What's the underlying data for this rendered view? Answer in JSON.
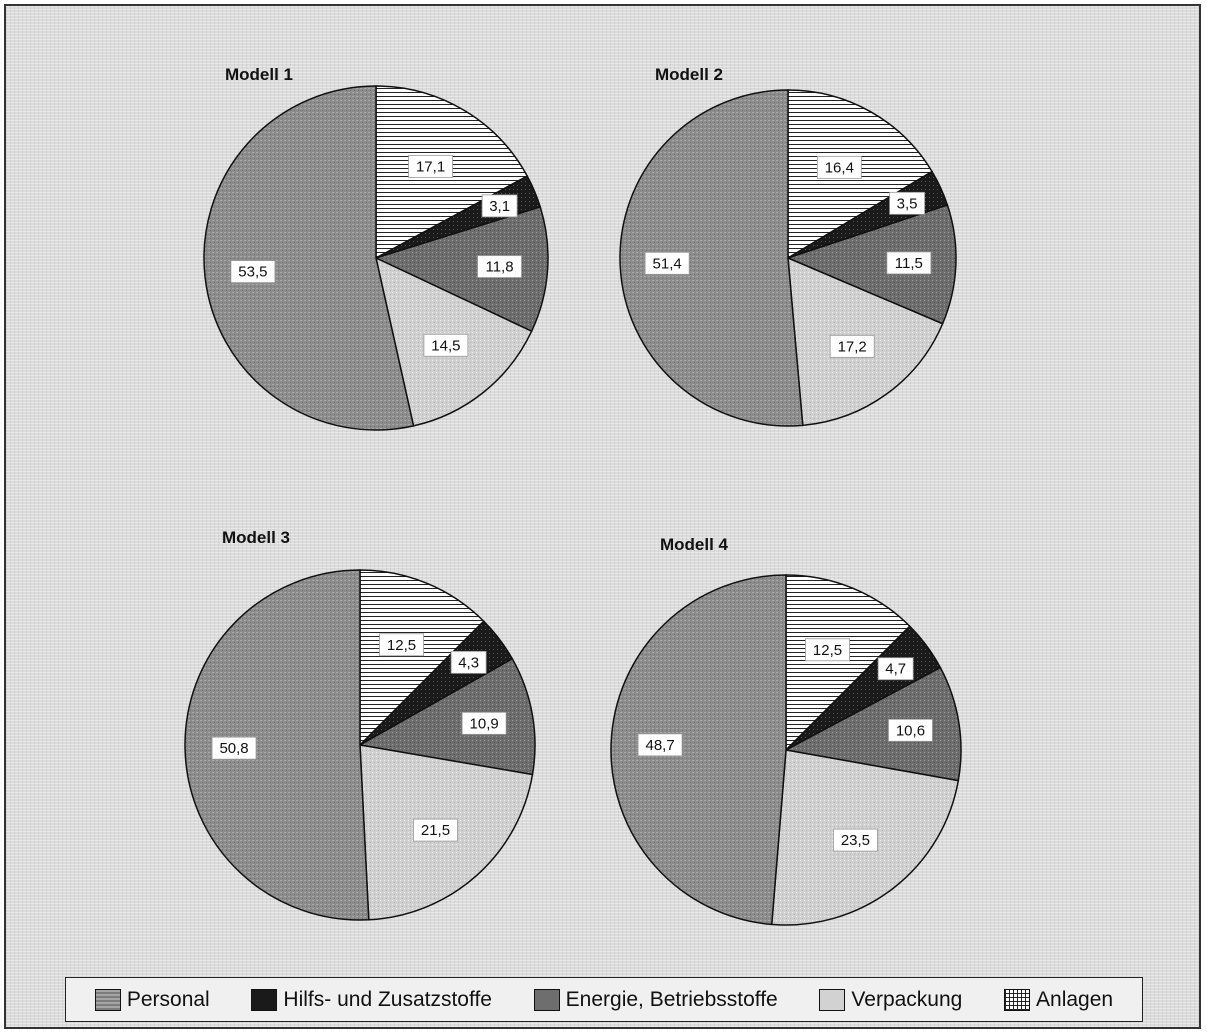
{
  "chart_data": [
    {
      "type": "pie",
      "title": "Modell 1",
      "labels": [
        "Anlagen",
        "Hilfs- und Zusatzstoffe",
        "Energie, Betriebsstoffe",
        "Verpackung",
        "Personal"
      ],
      "values": [
        17.1,
        3.1,
        11.8,
        14.5,
        53.5
      ],
      "value_labels": [
        "17,1",
        "3,1",
        "11,8",
        "14,5",
        "53,5"
      ]
    },
    {
      "type": "pie",
      "title": "Modell 2",
      "labels": [
        "Anlagen",
        "Hilfs- und Zusatzstoffe",
        "Energie, Betriebsstoffe",
        "Verpackung",
        "Personal"
      ],
      "values": [
        16.4,
        3.5,
        11.5,
        17.2,
        51.4
      ],
      "value_labels": [
        "16,4",
        "3,5",
        "11,5",
        "17,2",
        "51,4"
      ]
    },
    {
      "type": "pie",
      "title": "Modell 3",
      "labels": [
        "Anlagen",
        "Hilfs- und Zusatzstoffe",
        "Energie, Betriebsstoffe",
        "Verpackung",
        "Personal"
      ],
      "values": [
        12.5,
        4.3,
        10.9,
        21.5,
        50.8
      ],
      "value_labels": [
        "12,5",
        "4,3",
        "10,9",
        "21,5",
        "50,8"
      ]
    },
    {
      "type": "pie",
      "title": "Modell 4",
      "labels": [
        "Anlagen",
        "Hilfs- und Zusatzstoffe",
        "Energie, Betriebsstoffe",
        "Verpackung",
        "Personal"
      ],
      "values": [
        12.5,
        4.7,
        10.6,
        23.5,
        48.7
      ],
      "value_labels": [
        "12,5",
        "4,7",
        "10,6",
        "23,5",
        "48,7"
      ]
    }
  ],
  "legend": [
    {
      "label": "Personal",
      "fill": "pattern-personal"
    },
    {
      "label": "Hilfs- und Zusatzstoffe",
      "fill": "pattern-hilfs"
    },
    {
      "label": "Energie, Betriebsstoffe",
      "fill": "pattern-energie"
    },
    {
      "label": "Verpackung",
      "fill": "pattern-verpackung"
    },
    {
      "label": "Anlagen",
      "fill": "pattern-anlagen"
    }
  ],
  "colors": {
    "Personal": "#8a8a8a",
    "Hilfs- und Zusatzstoffe": "#1a1a1a",
    "Energie, Betriebsstoffe": "#6a6a6a",
    "Verpackung": "#d2d2d2",
    "Anlagen": "#ffffff"
  },
  "legend_position": "bottom"
}
